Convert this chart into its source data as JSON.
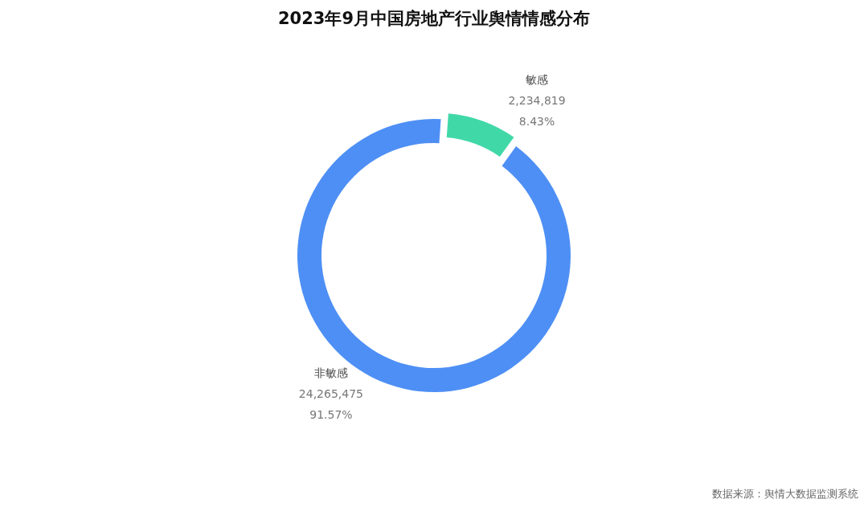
{
  "chart_data": {
    "type": "donut",
    "title": "2023年9月中国房地产行业舆情情感分布",
    "categories": [
      "敏感",
      "非敏感"
    ],
    "values": [
      2234819,
      24265475
    ],
    "colors": [
      "#41d8a8",
      "#4e8ff5"
    ],
    "value_labels": [
      "2,234,819",
      "24,265,475"
    ],
    "legend": false,
    "annotations": [
      {
        "text": "8.43%",
        "x": "敏感"
      },
      {
        "text": "91.57%",
        "x": "非敏感"
      },
      "数据来源：舆情大数据监测系统"
    ]
  }
}
